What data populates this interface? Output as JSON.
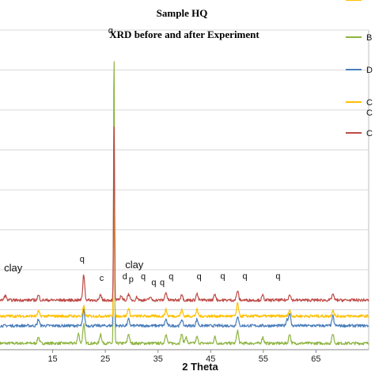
{
  "chart_data": {
    "type": "line",
    "title": "Sample HQ",
    "subtitle": "XRD before and after Experiment",
    "xlabel": "2 Theta",
    "ylabel": "",
    "xlim": [
      5,
      75
    ],
    "ylim": [
      0,
      1
    ],
    "x_ticks": [
      "15",
      "25",
      "35",
      "45",
      "55",
      "65"
    ],
    "x_tick_values": [
      15,
      25,
      35,
      45,
      55,
      65
    ],
    "grid": true,
    "legend_position": "right",
    "series": [
      {
        "name": "B",
        "color": "#8db441",
        "offset": 0.02,
        "peaks": [
          [
            12.3,
            0.02
          ],
          [
            19.9,
            0.03
          ],
          [
            20.9,
            0.06
          ],
          [
            24.1,
            0.03
          ],
          [
            26.65,
            0.93
          ],
          [
            29.4,
            0.03
          ],
          [
            36.5,
            0.03
          ],
          [
            39.5,
            0.03
          ],
          [
            40.3,
            0.02
          ],
          [
            42.4,
            0.02
          ],
          [
            45.8,
            0.02
          ],
          [
            50.1,
            0.04
          ],
          [
            54.9,
            0.02
          ],
          [
            60.0,
            0.03
          ],
          [
            68.2,
            0.03
          ]
        ]
      },
      {
        "name": "D",
        "color": "#4a7ebb",
        "offset": 0.075,
        "peaks": [
          [
            12.3,
            0.02
          ],
          [
            20.9,
            0.05
          ],
          [
            26.65,
            0.62
          ],
          [
            29.4,
            0.02
          ],
          [
            36.5,
            0.02
          ],
          [
            39.5,
            0.02
          ],
          [
            42.4,
            0.02
          ],
          [
            50.1,
            0.03
          ],
          [
            59.5,
            0.02
          ],
          [
            60.0,
            0.04
          ],
          [
            68.2,
            0.03
          ]
        ]
      },
      {
        "name": "C",
        "color": "#ffc000",
        "offset": 0.105,
        "peaks": [
          [
            12.3,
            0.015
          ],
          [
            20.9,
            0.03
          ],
          [
            26.65,
            0.42
          ],
          [
            29.4,
            0.025
          ],
          [
            36.5,
            0.02
          ],
          [
            39.5,
            0.02
          ],
          [
            42.4,
            0.02
          ],
          [
            50.1,
            0.04
          ],
          [
            60.0,
            0.02
          ],
          [
            68.2,
            0.02
          ]
        ]
      },
      {
        "name": "C",
        "color": "#be4b48",
        "offset": 0.155,
        "peaks": [
          [
            6.0,
            0.015
          ],
          [
            12.3,
            0.015
          ],
          [
            20.9,
            0.08
          ],
          [
            24.1,
            0.015
          ],
          [
            26.65,
            0.57
          ],
          [
            28.0,
            0.015
          ],
          [
            29.4,
            0.02
          ],
          [
            31.0,
            0.01
          ],
          [
            33.5,
            0.01
          ],
          [
            36.5,
            0.025
          ],
          [
            39.5,
            0.02
          ],
          [
            42.4,
            0.02
          ],
          [
            45.8,
            0.02
          ],
          [
            50.1,
            0.03
          ],
          [
            54.9,
            0.015
          ],
          [
            60.0,
            0.02
          ],
          [
            68.2,
            0.02
          ]
        ]
      },
      {
        "name": "K",
        "color": "#ffc000",
        "offset": 0.105,
        "peaks": []
      }
    ],
    "annotations": [
      {
        "text": "q",
        "x": 26.0,
        "y": 0.99
      },
      {
        "text": "clay",
        "x": 7.5,
        "y": 0.245
      },
      {
        "text": "q",
        "x": 20.6,
        "y": 0.275
      },
      {
        "text": "clay",
        "x": 30.5,
        "y": 0.255
      },
      {
        "text": "c",
        "x": 24.3,
        "y": 0.215
      },
      {
        "text": "d",
        "x": 28.7,
        "y": 0.22
      },
      {
        "text": "p",
        "x": 29.9,
        "y": 0.212
      },
      {
        "text": "q",
        "x": 32.2,
        "y": 0.22
      },
      {
        "text": "q",
        "x": 34.2,
        "y": 0.202
      },
      {
        "text": "q",
        "x": 35.8,
        "y": 0.202
      },
      {
        "text": "q",
        "x": 37.5,
        "y": 0.22
      },
      {
        "text": "q",
        "x": 42.8,
        "y": 0.22
      },
      {
        "text": "q",
        "x": 47.3,
        "y": 0.222
      },
      {
        "text": "q",
        "x": 51.5,
        "y": 0.222
      },
      {
        "text": "q",
        "x": 57.8,
        "y": 0.222
      }
    ]
  }
}
